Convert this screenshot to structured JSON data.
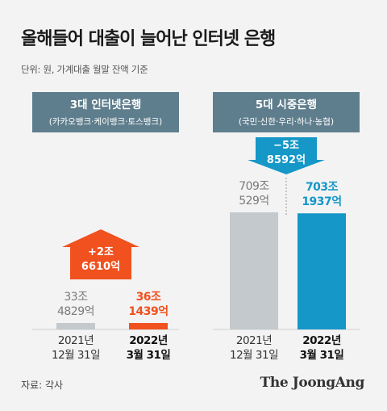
{
  "title": "올해들어 대출이 늘어난 인터넷 은행",
  "unit_note": "단위: 원, 가계대출 월말 잔액 기준",
  "source": "자료: 각사",
  "logo": "The JoongAng",
  "colors": {
    "header": "#5f7e8d",
    "prev_bar": "#c3c9cc",
    "up": "#f0511f",
    "down": "#1597c7",
    "prev_text": "#7a7a7a"
  },
  "chart_data": [
    {
      "type": "bar",
      "title": "3대 인터넷은행",
      "subtitle": "(카카오뱅크·케이뱅크·토스뱅크)",
      "categories": [
        [
          "2021년",
          "12월 31일"
        ],
        [
          "2022년",
          "3월 31일"
        ]
      ],
      "values": [
        33.4829,
        36.1439
      ],
      "value_labels": [
        [
          "33조",
          "4829억"
        ],
        [
          "36조",
          "1439억"
        ]
      ],
      "change": {
        "direction": "up",
        "label": [
          "+2조",
          "6610억"
        ]
      }
    },
    {
      "type": "bar",
      "title": "5대 시중은행",
      "subtitle": "(국민·신한·우리·하나·농협)",
      "categories": [
        [
          "2021년",
          "12월 31일"
        ],
        [
          "2022년",
          "3월 31일"
        ]
      ],
      "values": [
        709.0529,
        703.1937
      ],
      "value_labels": [
        [
          "709조",
          "529억"
        ],
        [
          "703조",
          "1937억"
        ]
      ],
      "change": {
        "direction": "down",
        "label": [
          "−5조",
          "8592억"
        ]
      }
    }
  ]
}
